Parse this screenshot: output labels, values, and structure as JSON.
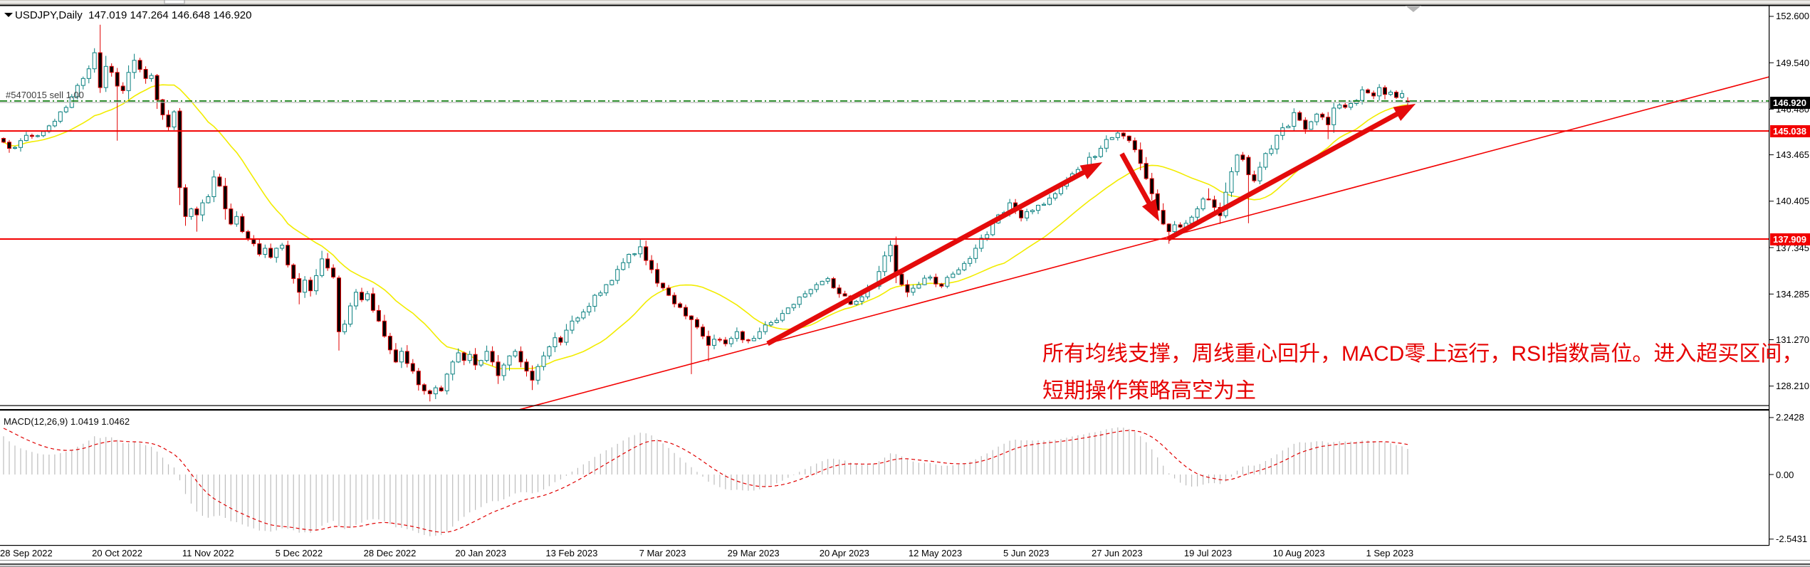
{
  "title": {
    "symbol_period": "USDJPY,Daily",
    "ohlc": "147.019 147.264 146.648 146.920"
  },
  "order": {
    "label": "#5470015 sell 1.00"
  },
  "annotation": {
    "line1": "所有均线支撑，周线重心回升，MACD零上运行，RSI指数高位。进入超买区间，",
    "line2": "短期操作策略高空为主",
    "color": "#e60000"
  },
  "macd": {
    "label": "MACD(12,26,9)",
    "value_main": "1.0419",
    "value_signal": "1.0462",
    "axis_labels": [
      {
        "text": "2.2428",
        "value": 2.2428
      },
      {
        "text": "0.00",
        "value": 0
      },
      {
        "text": "-2.5431",
        "value": -2.5431
      }
    ]
  },
  "price_axis": {
    "labels": [
      "152.600",
      "149.540",
      "146.480",
      "143.465",
      "140.405",
      "137.345",
      "134.285",
      "131.270",
      "128.210"
    ],
    "badges": [
      {
        "value": "146.920",
        "bg": "#000000",
        "role": "current-price"
      },
      {
        "value": "145.038",
        "bg": "#f20000",
        "role": "resistance"
      },
      {
        "value": "137.909",
        "bg": "#f20000",
        "role": "support"
      }
    ]
  },
  "time_axis": {
    "labels": [
      "28 Sep 2022",
      "20 Oct 2022",
      "11 Nov 2022",
      "5 Dec 2022",
      "28 Dec 2022",
      "20 Jan 2023",
      "13 Feb 2023",
      "7 Mar 2023",
      "29 Mar 2023",
      "20 Apr 2023",
      "12 May 2023",
      "5 Jun 2023",
      "27 Jun 2023",
      "19 Jul 2023",
      "10 Aug 2023",
      "1 Sep 2023"
    ],
    "ticks_per_label": 16
  },
  "chart_data": {
    "type": "candlestick",
    "symbol": "USDJPY",
    "timeframe": "Daily",
    "levels": {
      "resistance": 145.038,
      "support": 137.909,
      "current_bid": 146.92,
      "order_price": 147.019
    },
    "colors": {
      "bull": "#0a8080",
      "bear": "#e00000",
      "bull_fill": "#ffffff",
      "bear_fill": "#000000",
      "ma": "#f2ec00",
      "level_line": "#f20000",
      "trend_line": "#f20000",
      "arrow": "#e40b0b",
      "order_line": "#067806",
      "bid_line": "#b9b9b9",
      "macd_bar": "#bdbdbd",
      "macd_signal": "#e00000"
    },
    "ma": {
      "period": 20
    },
    "macd_params": {
      "fast": 12,
      "slow": 26,
      "signal": 9
    },
    "trendline": {
      "start": {
        "i": 90.8,
        "price": 126.66
      },
      "end": {
        "i": 310.6,
        "price": 148.61
      }
    },
    "arrows": [
      {
        "name": "uptrend-1",
        "start": {
          "i": 134.4,
          "price": 131.01
        },
        "end": {
          "i": 193.3,
          "price": 142.98
        }
      },
      {
        "name": "correction-down",
        "start": {
          "i": 196.7,
          "price": 143.54
        },
        "end": {
          "i": 203.3,
          "price": 139.08
        }
      },
      {
        "name": "uptrend-2",
        "start": {
          "i": 204.8,
          "price": 137.91
        },
        "end": {
          "i": 248.4,
          "price": 146.83
        }
      }
    ],
    "shift_marker_i": 248,
    "candles": {
      "count": 248,
      "first_open": 144.55,
      "close_anchors": [
        [
          0,
          144.3
        ],
        [
          2,
          143.95
        ],
        [
          4,
          144.75
        ],
        [
          7,
          145.0
        ],
        [
          10,
          146.3
        ],
        [
          12,
          147.3
        ],
        [
          14,
          148.5
        ],
        [
          16,
          150.2
        ],
        [
          17,
          147.9
        ],
        [
          18,
          149.3
        ],
        [
          19,
          148.9
        ],
        [
          20,
          148.0
        ],
        [
          21,
          147.7
        ],
        [
          22,
          148.9
        ],
        [
          23,
          149.7
        ],
        [
          24,
          149.1
        ],
        [
          25,
          148.5
        ],
        [
          26,
          148.7
        ],
        [
          27,
          147.1
        ],
        [
          28,
          146.1
        ],
        [
          29,
          145.3
        ],
        [
          30,
          146.3
        ],
        [
          31,
          141.3
        ],
        [
          32,
          139.4
        ],
        [
          33,
          139.9
        ],
        [
          34,
          139.5
        ],
        [
          35,
          140.3
        ],
        [
          36,
          140.7
        ],
        [
          37,
          142.0
        ],
        [
          38,
          141.4
        ],
        [
          39,
          139.9
        ],
        [
          40,
          138.9
        ],
        [
          41,
          139.4
        ],
        [
          42,
          138.4
        ],
        [
          43,
          137.9
        ],
        [
          44,
          137.6
        ],
        [
          45,
          136.9
        ],
        [
          46,
          137.3
        ],
        [
          47,
          136.7
        ],
        [
          48,
          137.3
        ],
        [
          49,
          137.5
        ],
        [
          50,
          136.2
        ],
        [
          51,
          135.3
        ],
        [
          52,
          134.4
        ],
        [
          53,
          135.2
        ],
        [
          54,
          134.5
        ],
        [
          55,
          135.5
        ],
        [
          56,
          136.6
        ],
        [
          57,
          136.0
        ],
        [
          58,
          135.4
        ],
        [
          59,
          131.8
        ],
        [
          60,
          132.3
        ],
        [
          61,
          133.5
        ],
        [
          62,
          134.4
        ],
        [
          63,
          133.9
        ],
        [
          64,
          134.3
        ],
        [
          65,
          133.2
        ],
        [
          66,
          132.5
        ],
        [
          67,
          131.5
        ],
        [
          68,
          130.6
        ],
        [
          69,
          129.8
        ],
        [
          70,
          130.5
        ],
        [
          71,
          129.7
        ],
        [
          72,
          129.2
        ],
        [
          73,
          128.3
        ],
        [
          74,
          127.9
        ],
        [
          75,
          127.7
        ],
        [
          76,
          128.1
        ],
        [
          77,
          127.9
        ],
        [
          78,
          129.0
        ],
        [
          79,
          129.8
        ],
        [
          80,
          130.4
        ],
        [
          81,
          129.9
        ],
        [
          82,
          130.3
        ],
        [
          83,
          129.6
        ],
        [
          84,
          129.9
        ],
        [
          85,
          130.5
        ],
        [
          86,
          129.8
        ],
        [
          87,
          128.9
        ],
        [
          88,
          129.6
        ],
        [
          89,
          130.2
        ],
        [
          90,
          130.5
        ],
        [
          91,
          129.8
        ],
        [
          92,
          129.2
        ],
        [
          93,
          128.6
        ],
        [
          94,
          129.5
        ],
        [
          95,
          130.2
        ],
        [
          96,
          130.8
        ],
        [
          97,
          131.4
        ],
        [
          98,
          131.1
        ],
        [
          99,
          131.9
        ],
        [
          100,
          132.5
        ],
        [
          102,
          133.1
        ],
        [
          104,
          134.2
        ],
        [
          106,
          134.9
        ],
        [
          108,
          135.9
        ],
        [
          110,
          136.9
        ],
        [
          112,
          137.4
        ],
        [
          113,
          136.5
        ],
        [
          114,
          135.9
        ],
        [
          115,
          135.0
        ],
        [
          117,
          134.2
        ],
        [
          119,
          133.4
        ],
        [
          121,
          132.6
        ],
        [
          123,
          131.5
        ],
        [
          124,
          130.9
        ],
        [
          125,
          131.3
        ],
        [
          127,
          131.0
        ],
        [
          129,
          131.8
        ],
        [
          131,
          131.2
        ],
        [
          133,
          131.8
        ],
        [
          135,
          132.4
        ],
        [
          137,
          133.0
        ],
        [
          139,
          133.6
        ],
        [
          141,
          134.3
        ],
        [
          143,
          134.9
        ],
        [
          145,
          135.3
        ],
        [
          147,
          134.3
        ],
        [
          149,
          133.6
        ],
        [
          151,
          134.1
        ],
        [
          153,
          134.8
        ],
        [
          155,
          136.8
        ],
        [
          156,
          137.5
        ],
        [
          157,
          135.6
        ],
        [
          158,
          134.9
        ],
        [
          159,
          134.4
        ],
        [
          161,
          134.9
        ],
        [
          163,
          135.4
        ],
        [
          165,
          134.8
        ],
        [
          167,
          135.6
        ],
        [
          169,
          136.3
        ],
        [
          171,
          137.3
        ],
        [
          173,
          138.2
        ],
        [
          175,
          139.5
        ],
        [
          177,
          140.3
        ],
        [
          179,
          139.3
        ],
        [
          181,
          139.8
        ],
        [
          183,
          140.2
        ],
        [
          185,
          140.9
        ],
        [
          187,
          141.8
        ],
        [
          189,
          142.5
        ],
        [
          191,
          143.3
        ],
        [
          193,
          143.9
        ],
        [
          195,
          144.6
        ],
        [
          196,
          144.9
        ],
        [
          197,
          144.7
        ],
        [
          198,
          144.4
        ],
        [
          199,
          143.8
        ],
        [
          200,
          142.9
        ],
        [
          201,
          141.9
        ],
        [
          202,
          140.9
        ],
        [
          203,
          139.8
        ],
        [
          204,
          138.9
        ],
        [
          205,
          138.4
        ],
        [
          206,
          138.85
        ],
        [
          207,
          138.7
        ],
        [
          208,
          138.95
        ],
        [
          209,
          139.35
        ],
        [
          210,
          139.9
        ],
        [
          211,
          140.55
        ],
        [
          212,
          140.5
        ],
        [
          213,
          140.0
        ],
        [
          214,
          139.45
        ],
        [
          215,
          141.0
        ],
        [
          216,
          142.35
        ],
        [
          217,
          143.45
        ],
        [
          218,
          143.15
        ],
        [
          219,
          142.15
        ],
        [
          220,
          141.75
        ],
        [
          221,
          142.65
        ],
        [
          222,
          143.55
        ],
        [
          223,
          143.85
        ],
        [
          224,
          144.75
        ],
        [
          225,
          145.25
        ],
        [
          226,
          145.35
        ],
        [
          227,
          146.25
        ],
        [
          228,
          145.75
        ],
        [
          229,
          145.15
        ],
        [
          230,
          145.65
        ],
        [
          231,
          146.15
        ],
        [
          232,
          145.95
        ],
        [
          233,
          145.45
        ],
        [
          234,
          146.55
        ],
        [
          235,
          146.75
        ],
        [
          236,
          146.6
        ],
        [
          237,
          146.85
        ],
        [
          238,
          147.05
        ],
        [
          239,
          147.75
        ],
        [
          240,
          147.55
        ],
        [
          241,
          147.35
        ],
        [
          242,
          147.9
        ],
        [
          243,
          147.45
        ],
        [
          244,
          147.6
        ],
        [
          245,
          147.25
        ],
        [
          246,
          147.5
        ],
        [
          247,
          146.92
        ]
      ],
      "overrides": {
        "17": {
          "o": 150.2,
          "h": 152.05,
          "l": 147.55
        },
        "20": {
          "l": 144.4
        },
        "31": {
          "o": 146.35,
          "h": 146.55,
          "l": 140.15
        },
        "34": {
          "l": 138.4
        },
        "52": {
          "l": 133.6
        },
        "59": {
          "o": 135.35,
          "h": 135.5,
          "l": 130.55
        },
        "75": {
          "l": 127.2
        },
        "76": {
          "l": 127.35
        },
        "87": {
          "l": 128.35
        },
        "93": {
          "l": 127.95
        },
        "112": {
          "h": 137.91
        },
        "121": {
          "l": 129.0
        },
        "124": {
          "l": 129.85
        },
        "156": {
          "h": 137.8
        },
        "196": {
          "h": 145.06
        },
        "205": {
          "l": 137.6
        },
        "212": {
          "h": 141.25
        },
        "214": {
          "l": 138.9
        },
        "219": {
          "o": 143.3,
          "h": 143.45,
          "l": 138.95
        },
        "233": {
          "l": 144.5
        },
        "243": {
          "h": 148.05
        },
        "247": {
          "o": 147.019,
          "h": 147.264,
          "l": 146.648,
          "c": 146.92
        }
      }
    }
  }
}
